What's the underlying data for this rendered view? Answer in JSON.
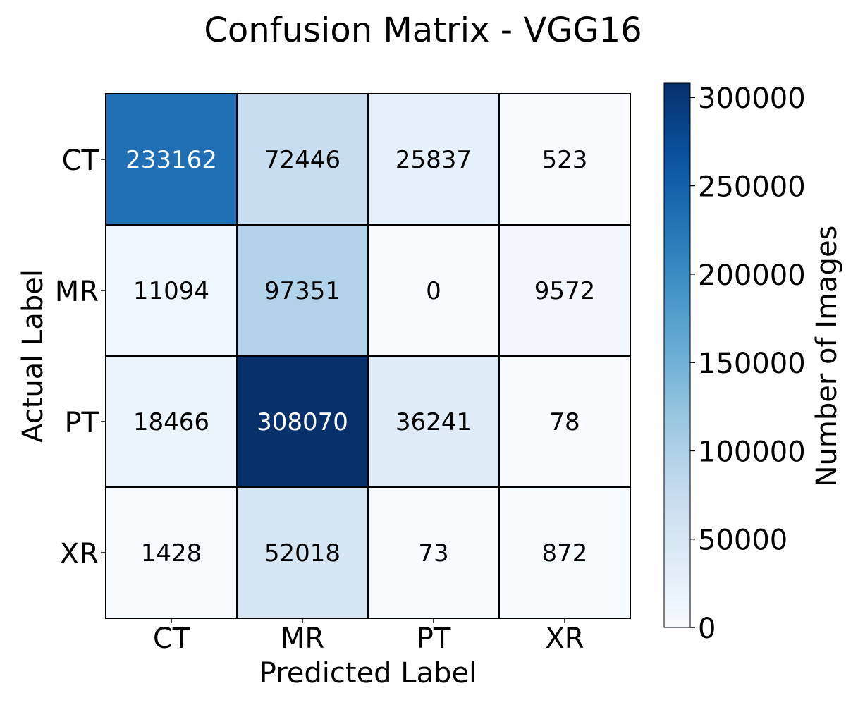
{
  "chart_data": {
    "type": "heatmap",
    "title": "Confusion Matrix - VGG16",
    "xlabel": "Predicted Label",
    "ylabel": "Actual Label",
    "x_categories": [
      "CT",
      "MR",
      "PT",
      "XR"
    ],
    "y_categories": [
      "CT",
      "MR",
      "PT",
      "XR"
    ],
    "values": [
      [
        233162,
        72446,
        25837,
        523
      ],
      [
        11094,
        97351,
        0,
        9572
      ],
      [
        18466,
        308070,
        36241,
        78
      ],
      [
        1428,
        52018,
        73,
        872
      ]
    ],
    "colormap": "Blues",
    "colorbar": {
      "label": "Number of Images",
      "ticks": [
        0,
        50000,
        100000,
        150000,
        200000,
        250000,
        300000
      ],
      "range": [
        0,
        308070
      ]
    },
    "text_color_light": "#ffffff",
    "text_color_dark": "#000000",
    "grid": true
  }
}
